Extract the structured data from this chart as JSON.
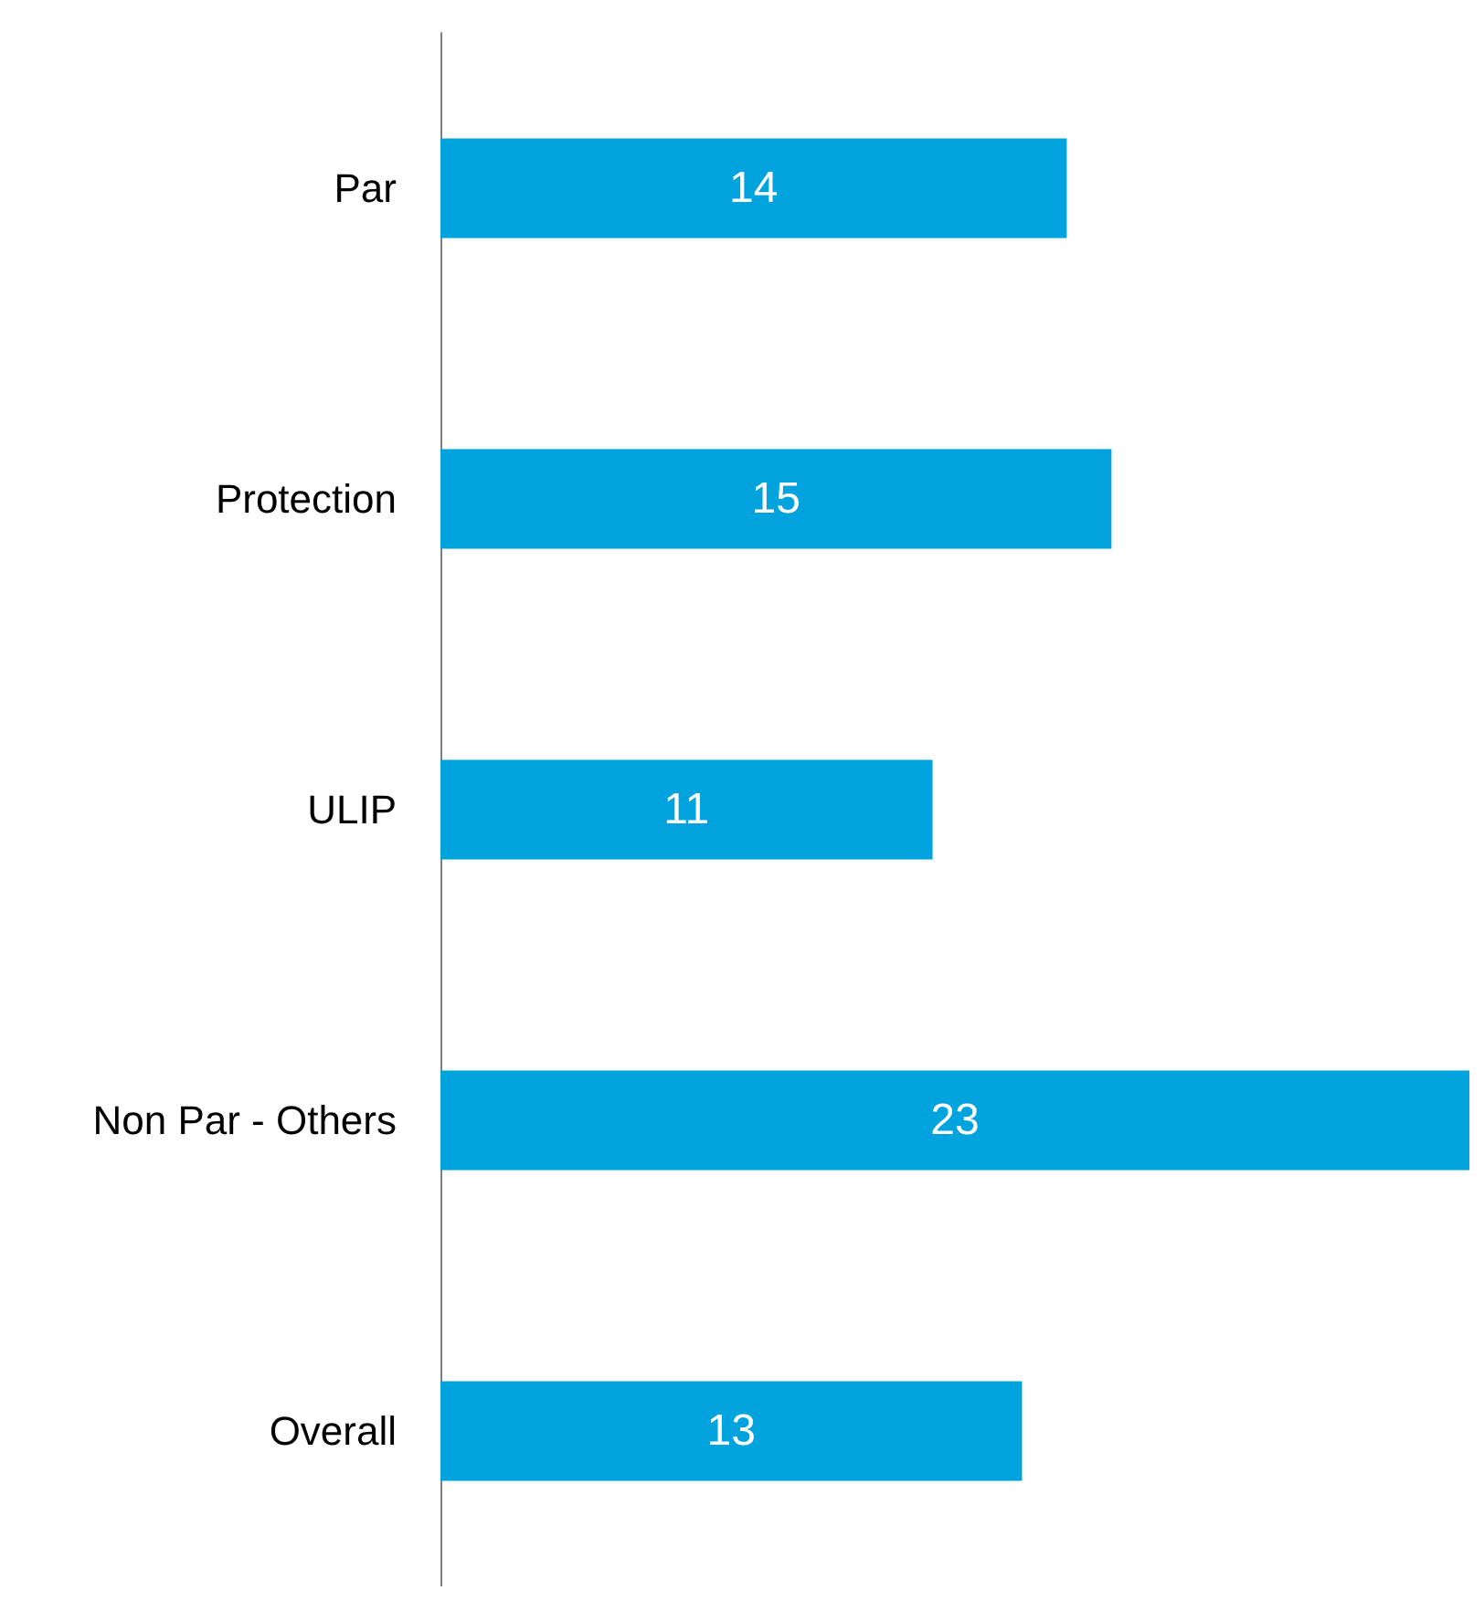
{
  "chart_data": {
    "type": "bar",
    "orientation": "horizontal",
    "categories": [
      "Par",
      "Protection",
      "ULIP",
      "Non Par - Others",
      "Overall"
    ],
    "values": [
      14,
      15,
      11,
      23,
      13
    ],
    "color": "#00a3de",
    "data_labels": true
  }
}
